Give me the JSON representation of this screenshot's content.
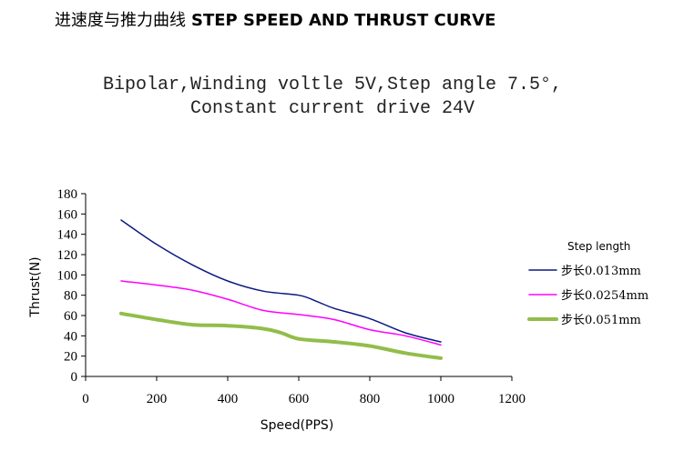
{
  "heading": {
    "chinese": "进速度与推力曲线",
    "english": "STEP SPEED AND THRUST CURVE"
  },
  "chart_data": {
    "type": "line",
    "subtitle_line1": "Bipolar,Winding voltle 5V,Step angle 7.5°,",
    "subtitle_line2": "Constant current drive 24V",
    "xlabel": "Speed(PPS)",
    "ylabel": "Thrust(N)",
    "xlim": [
      0,
      1200
    ],
    "ylim": [
      0,
      180
    ],
    "xticks": [
      0,
      200,
      400,
      600,
      800,
      1000,
      1200
    ],
    "yticks": [
      0,
      20,
      40,
      60,
      80,
      100,
      120,
      140,
      160,
      180
    ],
    "grid": false,
    "legend_title": "Step length",
    "legend_position": "right",
    "series": [
      {
        "name": "步长0.013mm",
        "color": "#0a1a80",
        "line_width": "thin",
        "x": [
          100,
          200,
          300,
          400,
          500,
          600,
          650,
          700,
          800,
          900,
          1000
        ],
        "y": [
          154,
          130,
          110,
          94,
          84,
          80,
          74,
          67,
          57,
          43,
          34
        ]
      },
      {
        "name": "步长0.0254mm",
        "color": "#ff00ff",
        "line_width": "thin",
        "x": [
          100,
          200,
          300,
          400,
          500,
          600,
          700,
          800,
          900,
          1000
        ],
        "y": [
          94,
          90,
          85,
          76,
          65,
          61,
          56,
          46,
          40,
          31
        ]
      },
      {
        "name": "步长0.051mm",
        "color": "#92bd4a",
        "line_width": "thick",
        "x": [
          100,
          200,
          300,
          400,
          500,
          550,
          600,
          700,
          800,
          900,
          1000
        ],
        "y": [
          62,
          56,
          51,
          50,
          47,
          43,
          37,
          34,
          30,
          23,
          18
        ]
      }
    ]
  }
}
